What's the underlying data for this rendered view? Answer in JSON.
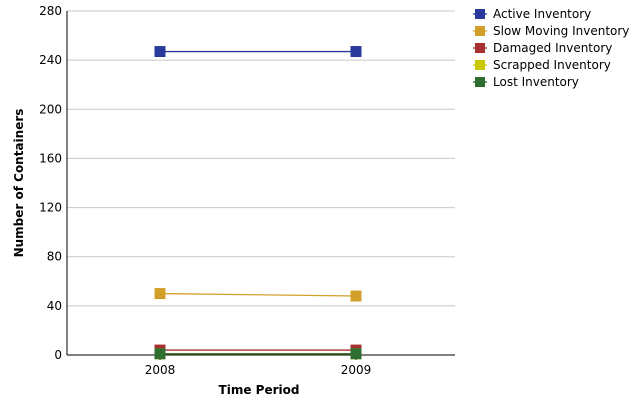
{
  "chart_data": {
    "type": "line",
    "x": [
      "2008",
      "2009"
    ],
    "xlabel": "Time Period",
    "ylabel": "Number of Containers",
    "ylim": [
      0,
      280
    ],
    "yticks": [
      "0",
      "40",
      "80",
      "120",
      "160",
      "200",
      "240",
      "280"
    ],
    "grid": true,
    "legend_position": "right",
    "series": [
      {
        "name": "Active Inventory",
        "values": [
          247,
          247
        ],
        "color": "#2a3a9c",
        "marker": "square"
      },
      {
        "name": "Slow Moving Inventory",
        "values": [
          50,
          48
        ],
        "color": "#d2a02a",
        "marker": "square"
      },
      {
        "name": "Damaged Inventory",
        "values": [
          4,
          4
        ],
        "color": "#a83030",
        "marker": "square"
      },
      {
        "name": "Scrapped Inventory",
        "values": [
          1,
          1
        ],
        "color": "#c8c800",
        "marker": "square"
      },
      {
        "name": "Lost Inventory",
        "values": [
          1,
          1
        ],
        "color": "#2e6e2e",
        "marker": "square"
      }
    ]
  }
}
